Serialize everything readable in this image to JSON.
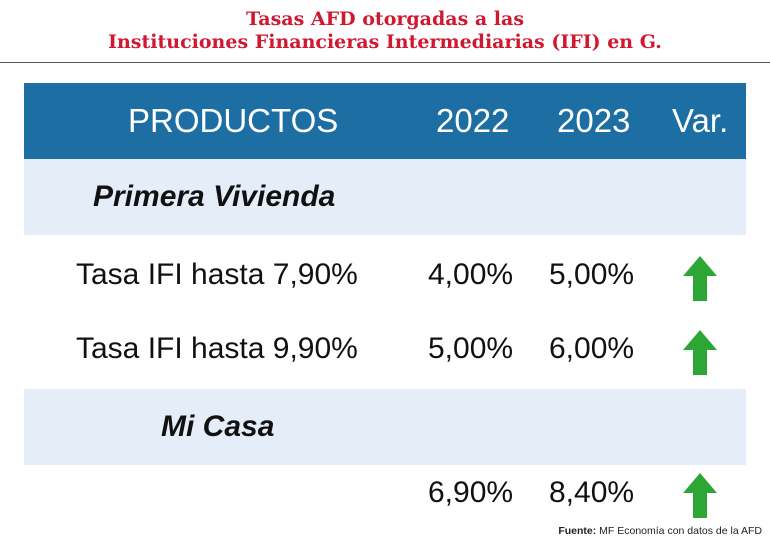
{
  "title": {
    "line1": "Tasas AFD otorgadas a las",
    "line2": "Instituciones Financieras Intermediarias (IFI) en G."
  },
  "colors": {
    "title": "#d01830",
    "header_bg": "#1d6ea2",
    "section_bg": "#e5edf8",
    "arrow": "#2da636"
  },
  "table": {
    "headers": [
      "PRODUCTOS",
      "2022",
      "2023",
      "Var."
    ],
    "sections": [
      {
        "name": "Primera Vivienda",
        "rows": [
          {
            "product": "Tasa IFI hasta 7,90%",
            "y2022": "4,00%",
            "y2023": "5,00%",
            "var_icon": "arrow-up-icon"
          },
          {
            "product": "Tasa IFI hasta 9,90%",
            "y2022": "5,00%",
            "y2023": "6,00%",
            "var_icon": "arrow-up-icon"
          }
        ]
      },
      {
        "name": "Mi Casa",
        "rows": [
          {
            "product": "",
            "y2022": "6,90%",
            "y2023": "8,40%",
            "var_icon": "arrow-up-icon"
          }
        ]
      }
    ]
  },
  "chart_data": {
    "type": "table",
    "title": "Tasas AFD otorgadas a las Instituciones Financieras Intermediarias (IFI) en G.",
    "columns": [
      "PRODUCTOS",
      "2022",
      "2023",
      "Var."
    ],
    "rows": [
      {
        "section": "Primera Vivienda",
        "product": "Tasa IFI hasta 7,90%",
        "2022": 4.0,
        "2023": 5.0,
        "var": "up"
      },
      {
        "section": "Primera Vivienda",
        "product": "Tasa IFI hasta 9,90%",
        "2022": 5.0,
        "2023": 6.0,
        "var": "up"
      },
      {
        "section": "Mi Casa",
        "product": "",
        "2022": 6.9,
        "2023": 8.4,
        "var": "up"
      }
    ]
  },
  "source": {
    "label": "Fuente:",
    "text": " MF Economía con datos de la AFD"
  }
}
